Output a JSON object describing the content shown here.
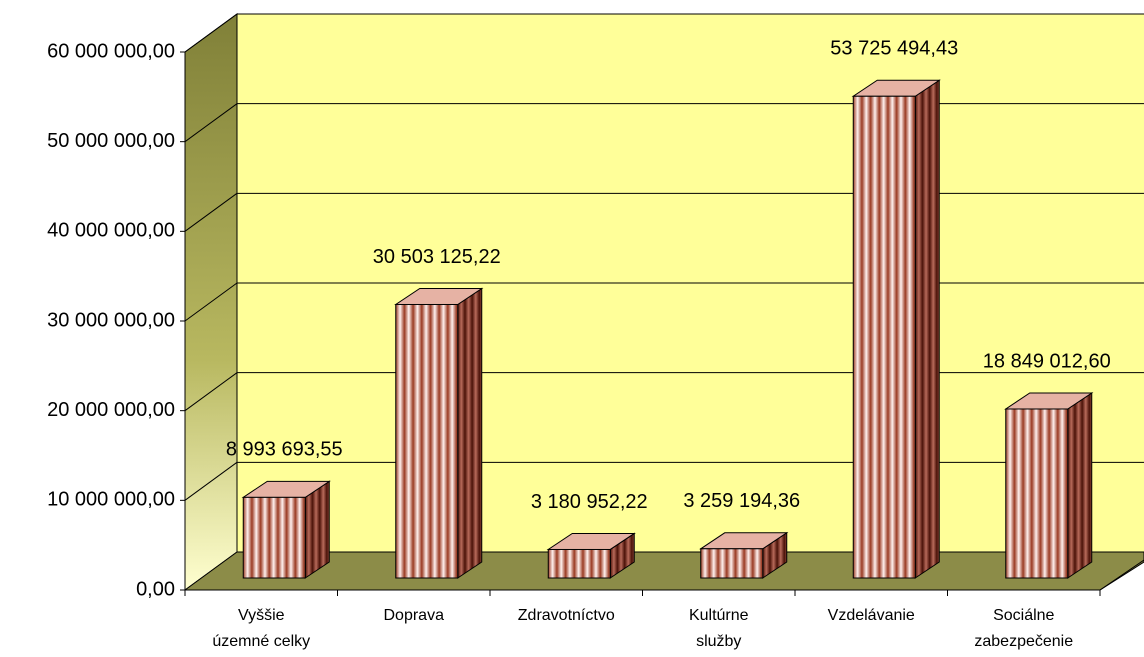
{
  "chart_data": {
    "type": "bar3d",
    "categories": [
      [
        "Vyššie",
        "územné celky"
      ],
      [
        "Doprava"
      ],
      [
        "Zdravotníctvo"
      ],
      [
        "Kultúrne",
        "služby"
      ],
      [
        "Vzdelávanie"
      ],
      [
        "Sociálne",
        "zabezpečenie"
      ]
    ],
    "values": [
      8993693.55,
      30503125.22,
      3180952.22,
      3259194.36,
      53725494.43,
      18849012.6
    ],
    "value_labels": [
      "8 993 693,55",
      "30 503 125,22",
      "3 180 952,22",
      "3 259 194,36",
      "53 725 494,43",
      "18 849 012,60"
    ],
    "color": "#a8432a",
    "ylim": [
      0,
      60000000
    ],
    "yticks": [
      {
        "value": 0,
        "label": "0,00"
      },
      {
        "value": 10000000,
        "label": "10 000 000,00"
      },
      {
        "value": 20000000,
        "label": "20 000 000,00"
      },
      {
        "value": 30000000,
        "label": "30 000 000,00"
      },
      {
        "value": 40000000,
        "label": "40 000 000,00"
      },
      {
        "value": 50000000,
        "label": "50 000 000,00"
      },
      {
        "value": 60000000,
        "label": "60 000 000,00"
      }
    ],
    "grid": true
  }
}
